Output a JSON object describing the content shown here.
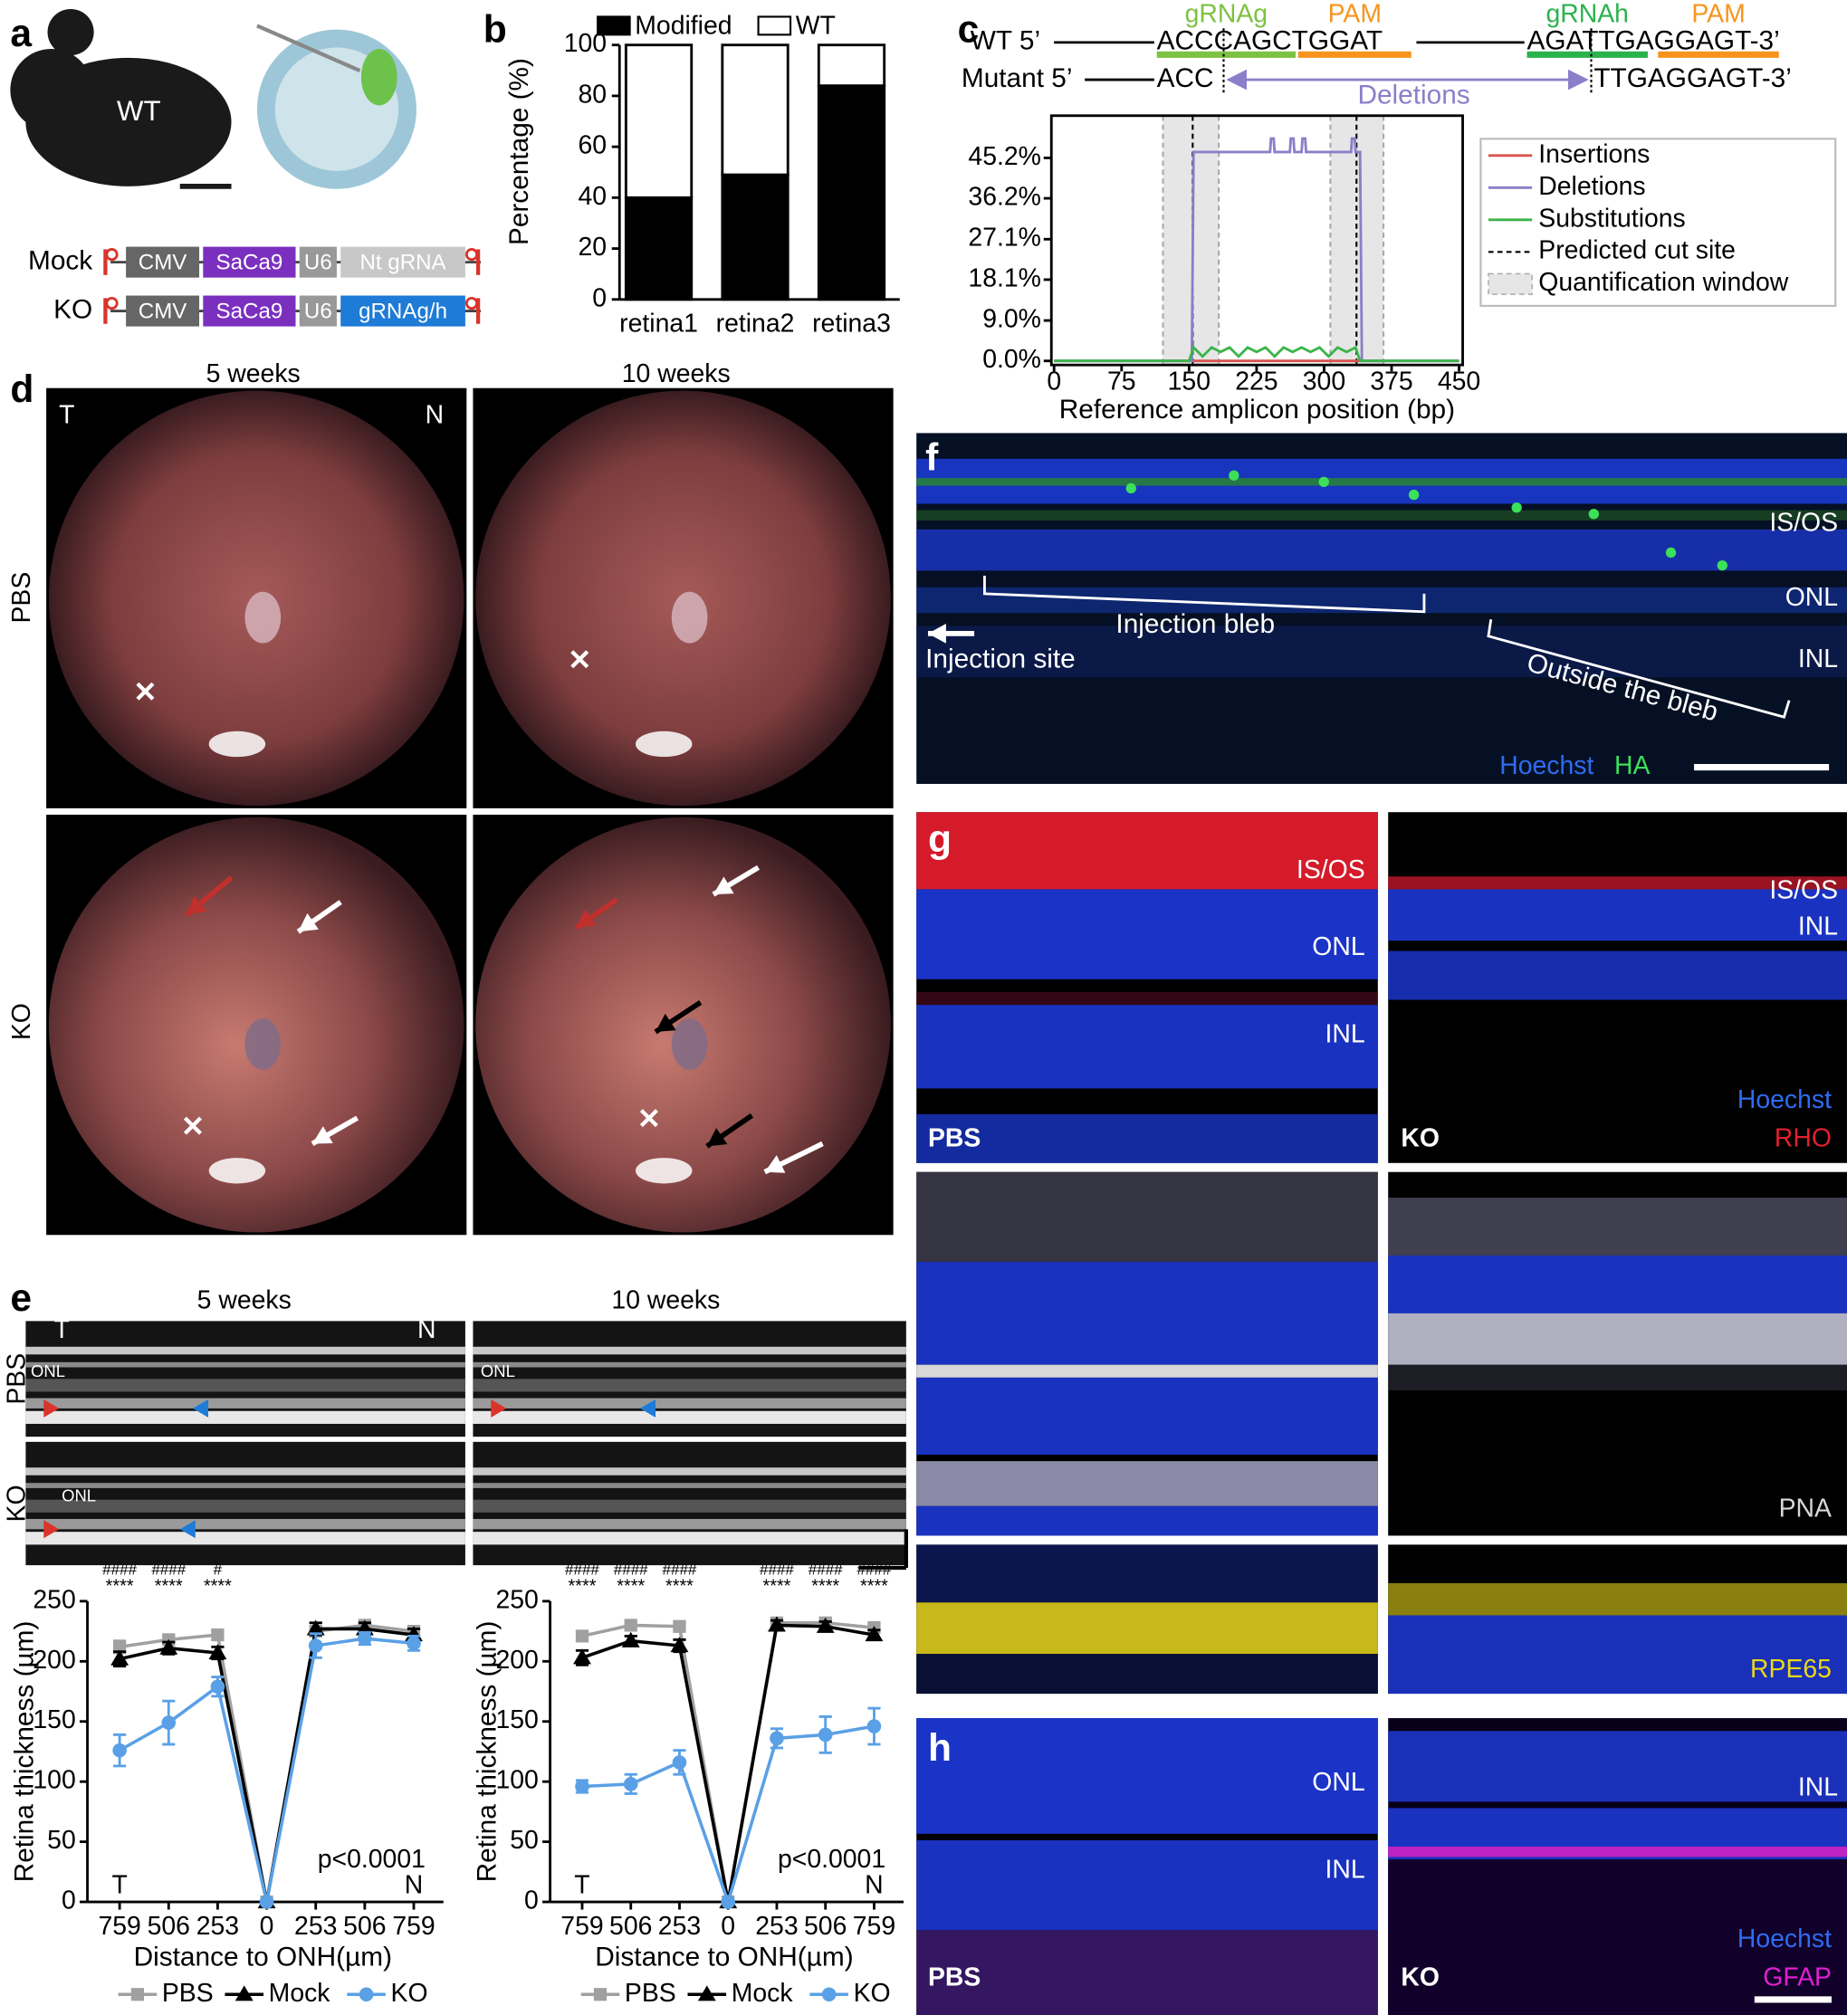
{
  "panel_letters": [
    "a",
    "b",
    "c",
    "d",
    "e",
    "f",
    "g",
    "h"
  ],
  "panel_a": {
    "mouse_label": "WT",
    "constructs": [
      {
        "name": "Mock",
        "parts": [
          "CMV",
          "SaCa9",
          "U6",
          "Nt gRNA"
        ]
      },
      {
        "name": "KO",
        "parts": [
          "CMV",
          "SaCa9",
          "U6",
          "gRNAg/h"
        ]
      }
    ]
  },
  "panel_c_sequence": {
    "wt_label": "WT 5’",
    "wt_left": "ACCCAGCTGGAT",
    "wt_right": "AGATTGAGGAGT-3’",
    "mutant_label": "Mutant 5’",
    "mutant_left": "ACC",
    "mutant_right": "TTGAGGAGT-3’",
    "deletions": "Deletions",
    "grna_g": "gRNAg",
    "pam_1": "PAM",
    "grna_h": "gRNAh",
    "pam_2": "PAM"
  },
  "panel_d": {
    "columns": [
      "5 weeks",
      "10 weeks"
    ],
    "rows": [
      "PBS",
      "KO"
    ],
    "temporal": "T",
    "nasal": "N"
  },
  "panel_e": {
    "columns": [
      "5 weeks",
      "10 weeks"
    ],
    "rows": [
      "PBS",
      "KO"
    ],
    "temporal": "T",
    "nasal": "N",
    "layer": "ONL"
  },
  "panel_f": {
    "layers": [
      "IS/OS",
      "ONL",
      "INL"
    ],
    "injection_bleb": "Injection bleb",
    "outside_bleb": "Outside the bleb",
    "injection_site": "Injection site",
    "stains": [
      "Hoechst",
      "HA"
    ]
  },
  "panel_g": {
    "pbs_layers": [
      "IS/OS",
      "ONL",
      "INL"
    ],
    "ko_layers": [
      "IS/OS",
      "INL"
    ],
    "groups": [
      "PBS",
      "KO"
    ],
    "stains": [
      "Hoechst",
      "RHO"
    ],
    "pna": "PNA",
    "rpe65": "RPE65"
  },
  "panel_h": {
    "pbs_layers": [
      "ONL",
      "INL"
    ],
    "ko_layers": [
      "INL"
    ],
    "groups": [
      "PBS",
      "KO"
    ],
    "stains": [
      "Hoechst",
      "GFAP"
    ]
  },
  "chart_data": [
    {
      "type": "bar",
      "stacked": true,
      "ylabel": "Percentage (%)",
      "categories": [
        "retina1",
        "retina2",
        "retina3"
      ],
      "ylim": [
        0,
        100
      ],
      "yticks": [
        0,
        20,
        40,
        60,
        80,
        100
      ],
      "legend": "top",
      "series": [
        {
          "name": "Modified",
          "color": "#000000",
          "values": [
            40,
            49,
            84
          ]
        },
        {
          "name": "WT",
          "color": "#ffffff",
          "values": [
            60,
            51,
            16
          ]
        }
      ]
    },
    {
      "type": "line",
      "xlabel": "Reference amplicon position (bp)",
      "xlim": [
        -3,
        454
      ],
      "xticks": [
        0,
        75,
        150,
        225,
        300,
        375,
        450
      ],
      "ylim": [
        -0.9,
        54.6
      ],
      "yticks": [
        {
          "value": 0,
          "label": "0.0%"
        },
        {
          "value": 9.0,
          "label": "9.0%"
        },
        {
          "value": 18.1,
          "label": "18.1%"
        },
        {
          "value": 27.1,
          "label": "27.1%"
        },
        {
          "value": 36.2,
          "label": "36.2%"
        },
        {
          "value": 45.2,
          "label": "45.2%"
        }
      ],
      "legend": "right",
      "cut_sites": [
        154,
        336
      ],
      "quantification_windows": [
        [
          121,
          183
        ],
        [
          307,
          366
        ]
      ],
      "cut_site_label": "Predicted cut site",
      "window_label": "Quantification window",
      "series": [
        {
          "name": "Insertions",
          "color": "#d9534f",
          "x": [
            0,
            450
          ],
          "values": [
            0,
            0
          ]
        },
        {
          "name": "Deletions",
          "color": "#8a7fc9",
          "x": [
            0,
            153,
            155,
            240,
            241,
            244,
            245,
            262,
            263,
            266,
            267,
            275,
            276,
            279,
            280,
            330,
            331,
            334,
            335,
            340,
            342,
            450
          ],
          "values": [
            0,
            0,
            46.5,
            46.5,
            49.5,
            49.5,
            46.5,
            46.5,
            49.5,
            49.5,
            46.5,
            46.5,
            49.5,
            49.5,
            46.5,
            46.5,
            49.5,
            49.5,
            46.5,
            46.5,
            0,
            0
          ]
        },
        {
          "name": "Substitutions",
          "color": "#3cb44b",
          "x": [
            0,
            150,
            155,
            165,
            175,
            185,
            195,
            205,
            215,
            225,
            235,
            245,
            255,
            265,
            275,
            285,
            295,
            305,
            315,
            325,
            335,
            340,
            345,
            450
          ],
          "values": [
            0,
            0,
            3,
            1,
            3,
            2,
            3,
            1,
            3,
            2,
            3,
            1,
            3,
            2,
            3,
            2,
            3,
            1,
            3,
            2,
            3,
            0,
            0,
            0
          ]
        }
      ]
    },
    {
      "type": "line",
      "ylabel": "Retina thickness (µm)",
      "xlabel": "Distance to ONH(µm)",
      "categories": [
        "759",
        "506",
        "253",
        "0",
        "253",
        "506",
        "759"
      ],
      "ylim": [
        0,
        250
      ],
      "yticks": [
        0,
        50,
        100,
        150,
        200,
        250
      ],
      "legend": "bottom",
      "annotations_top": [
        "####",
        "####",
        "#",
        null,
        null,
        null,
        null
      ],
      "annotations_bottom": [
        "****",
        "****",
        "****",
        null,
        null,
        null,
        null
      ],
      "p_value": "p<0.0001",
      "side_labels": [
        "T",
        "N"
      ],
      "series": [
        {
          "name": "PBS",
          "color": "#a0a0a0",
          "marker": "square",
          "values": [
            212,
            218,
            222,
            0,
            225,
            230,
            225
          ],
          "errors": [
            5,
            3,
            3,
            0,
            3,
            3,
            3
          ]
        },
        {
          "name": "Mock",
          "color": "#000000",
          "marker": "triangle",
          "values": [
            202,
            211,
            207,
            0,
            227,
            227,
            222
          ],
          "errors": [
            6,
            5,
            5,
            0,
            5,
            5,
            5
          ]
        },
        {
          "name": "KO",
          "color": "#5aa0e6",
          "marker": "circle",
          "values": [
            126,
            149,
            179,
            0,
            213,
            219,
            215
          ],
          "errors": [
            13,
            18,
            8,
            0,
            10,
            5,
            6
          ]
        }
      ]
    },
    {
      "type": "line",
      "ylabel": "Retina thickness (µm)",
      "xlabel": "Distance to ONH(µm)",
      "categories": [
        "759",
        "506",
        "253",
        "0",
        "253",
        "506",
        "759"
      ],
      "ylim": [
        0,
        250
      ],
      "yticks": [
        0,
        50,
        100,
        150,
        200,
        250
      ],
      "legend": "bottom",
      "annotations_top": [
        "####",
        "####",
        "####",
        null,
        "####",
        "####",
        "####"
      ],
      "annotations_bottom": [
        "****",
        "****",
        "****",
        null,
        "****",
        "****",
        "****"
      ],
      "p_value": "p<0.0001",
      "side_labels": [
        "T",
        "N"
      ],
      "series": [
        {
          "name": "PBS",
          "color": "#a0a0a0",
          "marker": "square",
          "values": [
            221,
            230,
            229,
            0,
            232,
            232,
            228
          ],
          "errors": [
            4,
            3,
            3,
            0,
            3,
            3,
            3
          ]
        },
        {
          "name": "Mock",
          "color": "#000000",
          "marker": "triangle",
          "values": [
            203,
            217,
            213,
            0,
            230,
            229,
            222
          ],
          "errors": [
            6,
            4,
            5,
            0,
            4,
            4,
            4
          ]
        },
        {
          "name": "KO",
          "color": "#5aa0e6",
          "marker": "circle",
          "values": [
            96,
            98,
            116,
            0,
            136,
            139,
            146
          ],
          "errors": [
            5,
            8,
            10,
            0,
            8,
            15,
            15
          ]
        }
      ]
    }
  ]
}
